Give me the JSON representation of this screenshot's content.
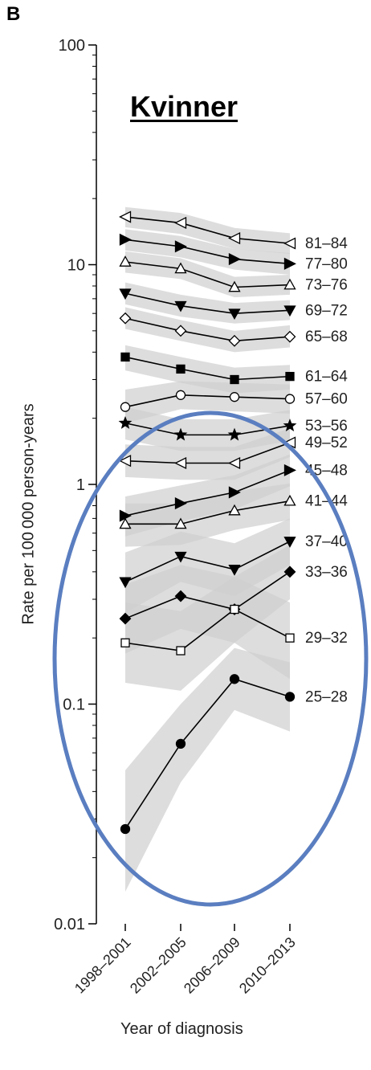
{
  "panel_label": "B",
  "annotation": {
    "ring_color": "#5a7ec0"
  },
  "chart_data": {
    "type": "line",
    "title": "Kvinner",
    "xlabel": "Year of diagnosis",
    "ylabel": "Rate per 100 000 person-years",
    "y_scale": "log",
    "ylim": [
      0.01,
      100
    ],
    "yticks": [
      "0.01",
      "0.1",
      "1",
      "10",
      "100"
    ],
    "categories": [
      "1998–2001",
      "2002–2005",
      "2006–2009",
      "2010–2013"
    ],
    "band_color": "#cfcfcf",
    "series": [
      {
        "name": "81–84",
        "marker": "triangle-left-open",
        "values": [
          16.5,
          15.5,
          13.2,
          12.5
        ],
        "ci": [
          [
            14.8,
            18.3
          ],
          [
            13.8,
            17.2
          ],
          [
            11.8,
            14.7
          ],
          [
            11.2,
            13.9
          ]
        ]
      },
      {
        "name": "77–80",
        "marker": "triangle-right-filled",
        "values": [
          13.0,
          12.1,
          10.6,
          10.1
        ],
        "ci": [
          [
            11.6,
            14.5
          ],
          [
            10.8,
            13.5
          ],
          [
            9.5,
            11.8
          ],
          [
            9.0,
            11.3
          ]
        ]
      },
      {
        "name": "73–76",
        "marker": "triangle-up-open",
        "values": [
          10.3,
          9.6,
          7.9,
          8.1
        ],
        "ci": [
          [
            9.2,
            11.5
          ],
          [
            8.6,
            10.7
          ],
          [
            7.1,
            8.8
          ],
          [
            7.3,
            9.0
          ]
        ]
      },
      {
        "name": "69–72",
        "marker": "triangle-down-filled",
        "values": [
          7.4,
          6.5,
          6.0,
          6.2
        ],
        "ci": [
          [
            6.6,
            8.3
          ],
          [
            5.8,
            7.3
          ],
          [
            5.4,
            6.7
          ],
          [
            5.6,
            6.9
          ]
        ]
      },
      {
        "name": "65–68",
        "marker": "diamond-open",
        "values": [
          5.7,
          5.0,
          4.5,
          4.7
        ],
        "ci": [
          [
            5.1,
            6.4
          ],
          [
            4.5,
            5.6
          ],
          [
            4.0,
            5.0
          ],
          [
            4.2,
            5.3
          ]
        ]
      },
      {
        "name": "61–64",
        "marker": "square-filled",
        "values": [
          3.8,
          3.35,
          3.0,
          3.1
        ],
        "ci": [
          [
            3.3,
            4.3
          ],
          [
            2.9,
            3.8
          ],
          [
            2.6,
            3.4
          ],
          [
            2.7,
            3.5
          ]
        ]
      },
      {
        "name": "57–60",
        "marker": "circle-open",
        "values": [
          2.25,
          2.55,
          2.5,
          2.45
        ],
        "ci": [
          [
            1.9,
            2.7
          ],
          [
            2.2,
            2.95
          ],
          [
            2.15,
            2.9
          ],
          [
            2.1,
            2.85
          ]
        ]
      },
      {
        "name": "53–56",
        "marker": "star-filled",
        "values": [
          1.9,
          1.68,
          1.68,
          1.85
        ],
        "ci": [
          [
            1.6,
            2.25
          ],
          [
            1.42,
            1.98
          ],
          [
            1.42,
            1.98
          ],
          [
            1.58,
            2.18
          ]
        ]
      },
      {
        "name": "49–52",
        "marker": "triangle-left-open",
        "values": [
          1.28,
          1.25,
          1.25,
          1.55
        ],
        "ci": [
          [
            1.08,
            1.52
          ],
          [
            1.05,
            1.48
          ],
          [
            1.05,
            1.48
          ],
          [
            1.33,
            1.8
          ]
        ]
      },
      {
        "name": "45–48",
        "marker": "triangle-right-filled",
        "values": [
          0.72,
          0.82,
          0.92,
          1.16
        ],
        "ci": [
          [
            0.58,
            0.88
          ],
          [
            0.68,
            0.99
          ],
          [
            0.77,
            1.1
          ],
          [
            0.98,
            1.37
          ]
        ]
      },
      {
        "name": "41–44",
        "marker": "triangle-up-open",
        "values": [
          0.66,
          0.66,
          0.76,
          0.84
        ],
        "ci": [
          [
            0.52,
            0.82
          ],
          [
            0.53,
            0.82
          ],
          [
            0.62,
            0.93
          ],
          [
            0.69,
            1.01
          ]
        ]
      },
      {
        "name": "37–40",
        "marker": "triangle-down-filled",
        "values": [
          0.36,
          0.47,
          0.41,
          0.55
        ],
        "ci": [
          [
            0.26,
            0.49
          ],
          [
            0.36,
            0.61
          ],
          [
            0.31,
            0.54
          ],
          [
            0.43,
            0.7
          ]
        ]
      },
      {
        "name": "33–36",
        "marker": "diamond-filled",
        "values": [
          0.245,
          0.31,
          0.27,
          0.4
        ],
        "ci": [
          [
            0.17,
            0.35
          ],
          [
            0.22,
            0.43
          ],
          [
            0.19,
            0.38
          ],
          [
            0.3,
            0.53
          ]
        ]
      },
      {
        "name": "29–32",
        "marker": "square-open",
        "values": [
          0.19,
          0.175,
          0.27,
          0.2
        ],
        "ci": [
          [
            0.125,
            0.29
          ],
          [
            0.115,
            0.265
          ],
          [
            0.19,
            0.38
          ],
          [
            0.13,
            0.29
          ]
        ]
      },
      {
        "name": "25–28",
        "marker": "circle-filled",
        "values": [
          0.027,
          0.066,
          0.13,
          0.108
        ],
        "ci": [
          [
            0.014,
            0.05
          ],
          [
            0.044,
            0.1
          ],
          [
            0.094,
            0.18
          ],
          [
            0.075,
            0.155
          ]
        ]
      }
    ]
  }
}
